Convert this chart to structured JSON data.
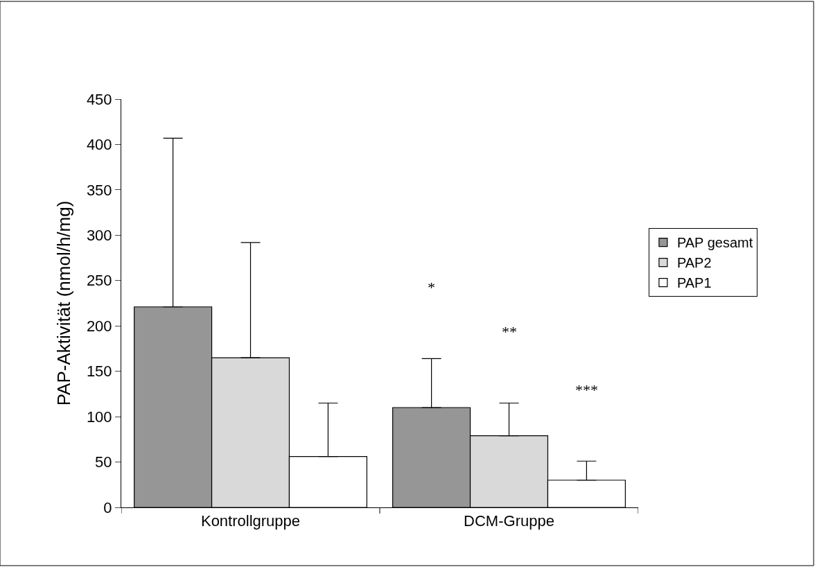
{
  "chart_data": {
    "type": "bar",
    "ylabel": "PAP-Aktivität (nmol/h/mg)",
    "categories": [
      "Kontrollgruppe",
      "DCM-Gruppe"
    ],
    "series": [
      {
        "name": "PAP gesamt",
        "color": "#969696",
        "values": [
          221,
          110
        ],
        "errors": [
          [
            221,
            407
          ],
          [
            110,
            164
          ]
        ]
      },
      {
        "name": "PAP2",
        "color": "#d9d9d9",
        "values": [
          165,
          79
        ],
        "errors": [
          [
            165,
            292
          ],
          [
            79,
            115
          ]
        ]
      },
      {
        "name": "PAP1",
        "color": "#ffffff",
        "values": [
          56,
          30
        ],
        "errors": [
          [
            56,
            115
          ],
          [
            30,
            51
          ]
        ]
      }
    ],
    "ylim": [
      0,
      450
    ],
    "yticks": [
      0,
      50,
      100,
      150,
      200,
      250,
      300,
      350,
      400,
      450
    ],
    "legend": "right",
    "annotations": [
      "*",
      "**",
      "***"
    ]
  }
}
